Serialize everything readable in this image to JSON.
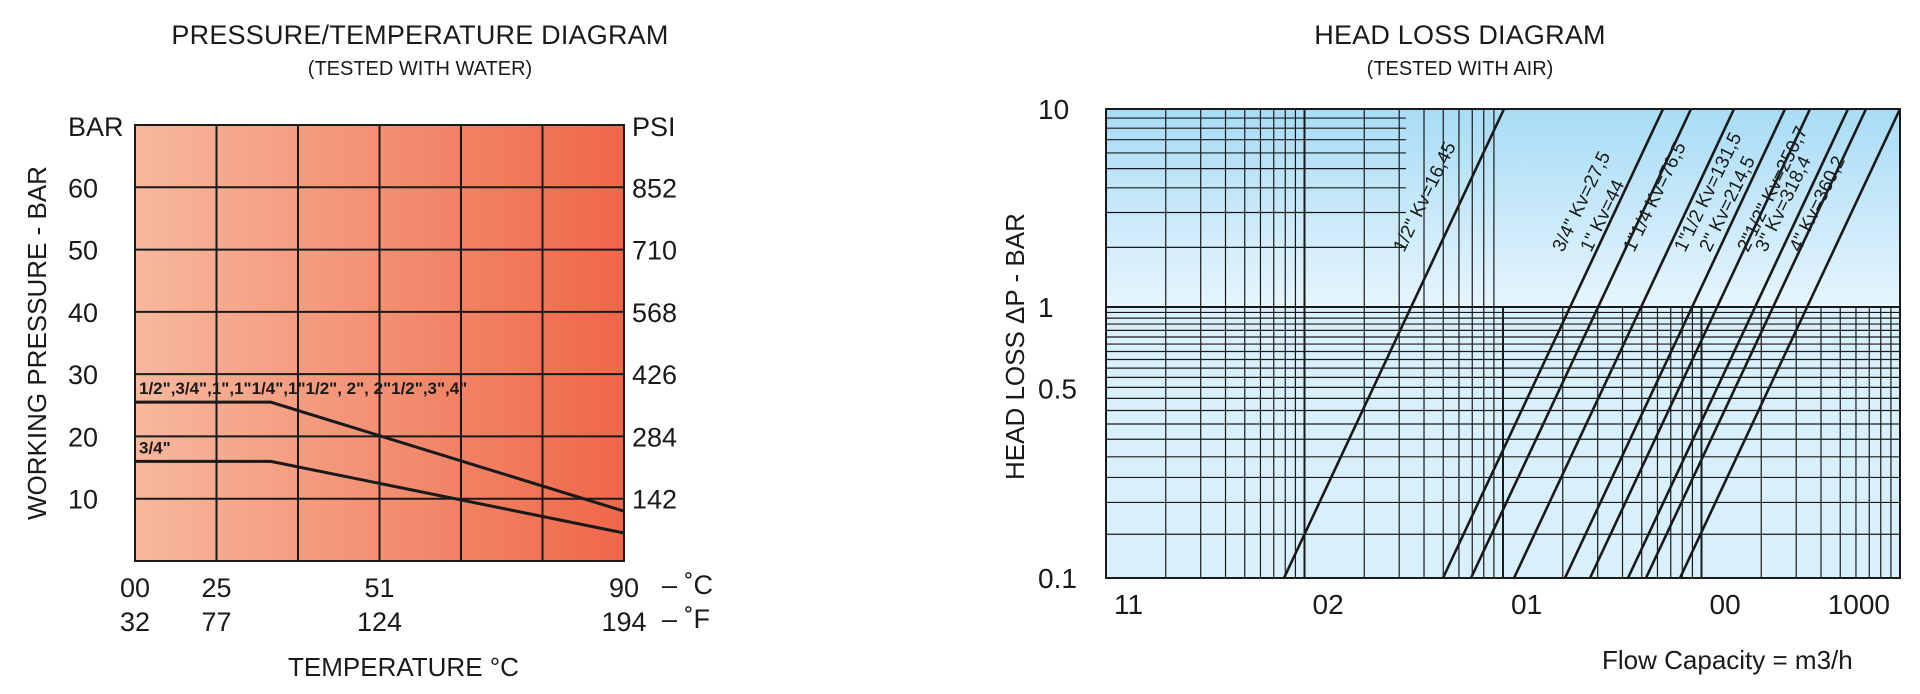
{
  "chart_data": [
    {
      "type": "line",
      "title": "PRESSURE/TEMPERATURE DIAGRAM",
      "subtitle": "(TESTED WITH WATER)",
      "xlabel": "TEMPERATURE °C",
      "ylabel": "WORKING PRESSURE - BAR",
      "y_unit_left": "BAR",
      "y_unit_right": "PSI",
      "xlim": [
        0,
        90
      ],
      "ylim": [
        0,
        70
      ],
      "x_ticks_c": [
        "00",
        "25",
        "51",
        "90"
      ],
      "x_ticks_f": [
        "32",
        "77",
        "124",
        "194"
      ],
      "x_unit_c": "– ˚C",
      "x_unit_f": "– ˚F",
      "x_tick_values": [
        0,
        25,
        51,
        90
      ],
      "y_ticks": [
        10,
        20,
        30,
        40,
        50,
        60
      ],
      "y_ticks_psi": [
        "142",
        "284",
        "426",
        "568",
        "710",
        "852"
      ],
      "grid": true,
      "gradient": [
        "#f7b89e",
        "#ef6748"
      ],
      "series": [
        {
          "name": "1/2\",3/4\",1\",1\"1/4\",1\"1/2\",  2\",    2\"1/2\",3\",4\"",
          "x": [
            0,
            25,
            90
          ],
          "y": [
            25.5,
            25.5,
            8
          ]
        },
        {
          "name": "3/4\"",
          "x": [
            0,
            25,
            90
          ],
          "y": [
            16,
            16,
            4.5
          ]
        }
      ]
    },
    {
      "type": "line",
      "title": "HEAD LOSS DIAGRAM",
      "subtitle": "(TESTED WITH AIR)",
      "xlabel": "Flow Capacity = m3/h",
      "ylabel": "HEAD LOSS ΔP - BAR",
      "log_x": true,
      "log_y": true,
      "ylim": [
        0.1,
        10
      ],
      "x_tick_labels": [
        "11",
        "02",
        "01",
        "00",
        "1000"
      ],
      "y_tick_labels": [
        "0.1",
        "0.5",
        "1",
        "10"
      ],
      "y_tick_values": [
        0.1,
        0.5,
        1,
        10
      ],
      "grid": true,
      "gradient_top": [
        "#a8dcf6",
        "#e6f5fd"
      ],
      "series": [
        {
          "name": "1/2\"  Kv=16,45",
          "kv": 16.45
        },
        {
          "name": "3/4\"  Kv=27,5",
          "kv": 27.5
        },
        {
          "name": "1\"  Kv=44",
          "kv": 44
        },
        {
          "name": "1\"1/4  Kv=76,5",
          "kv": 76.5
        },
        {
          "name": "1\"1/2  Kv=131,5",
          "kv": 131.5
        },
        {
          "name": "2\"  Kv=214,5",
          "kv": 214.5
        },
        {
          "name": "2\"1/2\"  Kv=250,7",
          "kv": 250.7
        },
        {
          "name": "3\"  Kv=318,4",
          "kv": 318.4
        },
        {
          "name": "4\"  Kv=360,2",
          "kv": 360.2
        }
      ]
    }
  ]
}
